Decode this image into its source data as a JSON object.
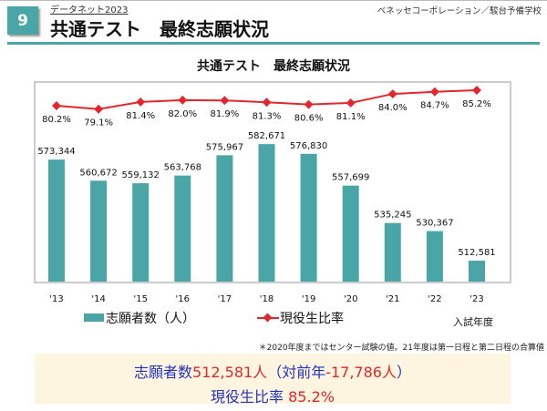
{
  "header": {
    "number": "9",
    "subtitle": "データネット2023",
    "title": "共通テスト　最終志願状況",
    "company": "ベネッセコーポレーション／駿台予備学校"
  },
  "chart_data": {
    "type": "bar+line",
    "title": "共通テスト　最終志願状況",
    "categories": [
      "'13",
      "'14",
      "'15",
      "'16",
      "'17",
      "'18",
      "'19",
      "'20",
      "'21",
      "'22",
      "'23"
    ],
    "series": [
      {
        "name": "志願者数（人）",
        "type": "bar",
        "color": "#4aa6a6",
        "values": [
          573344,
          560672,
          559132,
          563768,
          575967,
          582671,
          576830,
          557699,
          535245,
          530367,
          512581
        ],
        "labels": [
          "573,344",
          "560,672",
          "559,132",
          "563,768",
          "575,967",
          "582,671",
          "576,830",
          "557,699",
          "535,245",
          "530,367",
          "512,581"
        ]
      },
      {
        "name": "現役生比率",
        "type": "line",
        "color": "#e3262b",
        "values": [
          80.2,
          79.1,
          81.4,
          82.0,
          81.9,
          81.3,
          80.6,
          81.1,
          84.0,
          84.7,
          85.2
        ],
        "labels": [
          "80.2%",
          "79.1%",
          "81.4%",
          "82.0%",
          "81.9%",
          "81.3%",
          "80.6%",
          "81.1%",
          "84.0%",
          "84.7%",
          "85.2%"
        ]
      }
    ],
    "xlabel": "入試年度",
    "ylim_bar": [
      500000,
      620000
    ],
    "ylim_line": [
      75,
      88
    ]
  },
  "note": "＊2020年度まではセンター試験の値。21年度は第一日程と第二日程の合算値",
  "summary": {
    "l1a": "志願者数",
    "l1b": "512,581人",
    "l1c": "（対前年",
    "l1d": "-17,786人",
    "l1e": "）",
    "l2a": "現役生比率 ",
    "l2b": "85.2%"
  }
}
